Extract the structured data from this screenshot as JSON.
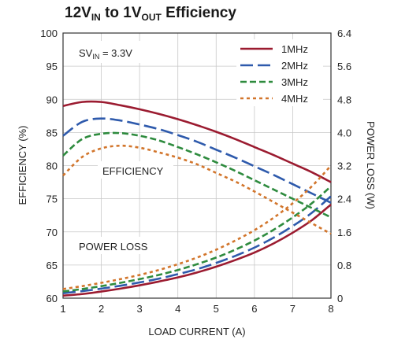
{
  "chart_data": {
    "type": "line",
    "title": {
      "main1": "12V",
      "sub1": "IN",
      "main2": " to 1V",
      "sub2": "OUT",
      "main3": " Efficiency"
    },
    "xlabel": "LOAD CURRENT (A)",
    "ylabel_left": "EFFICIENCY (%)",
    "ylabel_right": "POWER LOSS (W)",
    "xlim": [
      1,
      8
    ],
    "ylim_left": [
      60,
      100
    ],
    "ylim_right": [
      0,
      6.4
    ],
    "x_ticks": [
      "1",
      "2",
      "3",
      "4",
      "5",
      "6",
      "7",
      "8"
    ],
    "y_ticks_left": [
      "60",
      "65",
      "70",
      "75",
      "80",
      "85",
      "90",
      "95",
      "100"
    ],
    "y_ticks_right": [
      "0",
      "0.8",
      "1.6",
      "2.4",
      "3.2",
      "4.0",
      "4.8",
      "5.6",
      "6.4"
    ],
    "annotations": {
      "sv_main": "SV",
      "sv_sub": "IN",
      "sv_rest": " = 3.3V",
      "efficiency": "EFFICIENCY",
      "power_loss": "POWER LOSS"
    },
    "legend_position": "top-right",
    "x": [
      1,
      1.5,
      2,
      2.5,
      3,
      3.5,
      4,
      4.5,
      5,
      5.5,
      6,
      6.5,
      7,
      7.5,
      8
    ],
    "series": [
      {
        "name": "1MHz",
        "color": "#9b1b30",
        "dash": "",
        "efficiency": [
          89.0,
          89.6,
          89.6,
          89.1,
          88.5,
          87.8,
          87.0,
          86.1,
          85.1,
          84.0,
          82.8,
          81.6,
          80.3,
          79.0,
          77.5
        ],
        "power_loss": [
          0.06,
          0.1,
          0.16,
          0.23,
          0.31,
          0.4,
          0.5,
          0.62,
          0.76,
          0.92,
          1.1,
          1.32,
          1.58,
          1.88,
          2.26
        ]
      },
      {
        "name": "2MHz",
        "color": "#2e5aac",
        "dash": "16 6",
        "efficiency": [
          84.5,
          86.6,
          87.1,
          86.8,
          86.2,
          85.5,
          84.6,
          83.6,
          82.4,
          81.2,
          79.9,
          78.6,
          77.2,
          75.8,
          74.4
        ],
        "power_loss": [
          0.12,
          0.17,
          0.23,
          0.3,
          0.38,
          0.47,
          0.58,
          0.7,
          0.85,
          1.02,
          1.22,
          1.46,
          1.74,
          2.06,
          2.46
        ]
      },
      {
        "name": "3MHz",
        "color": "#2e8b3e",
        "dash": "8 4",
        "efficiency": [
          81.5,
          84.0,
          84.8,
          84.9,
          84.5,
          83.8,
          82.8,
          81.7,
          80.5,
          79.2,
          77.8,
          76.4,
          75.0,
          73.6,
          72.2
        ],
        "power_loss": [
          0.16,
          0.22,
          0.29,
          0.37,
          0.46,
          0.56,
          0.68,
          0.82,
          0.98,
          1.17,
          1.39,
          1.65,
          1.95,
          2.29,
          2.7
        ]
      },
      {
        "name": "4MHz",
        "color": "#d2752b",
        "dash": "4 4",
        "efficiency": [
          78.5,
          81.3,
          82.6,
          83.0,
          82.7,
          82.0,
          81.2,
          80.2,
          78.9,
          77.6,
          76.1,
          74.5,
          72.9,
          71.3,
          69.7
        ],
        "power_loss": [
          0.22,
          0.29,
          0.37,
          0.46,
          0.56,
          0.68,
          0.82,
          0.98,
          1.17,
          1.39,
          1.64,
          1.94,
          2.29,
          2.7,
          3.2
        ]
      }
    ]
  }
}
